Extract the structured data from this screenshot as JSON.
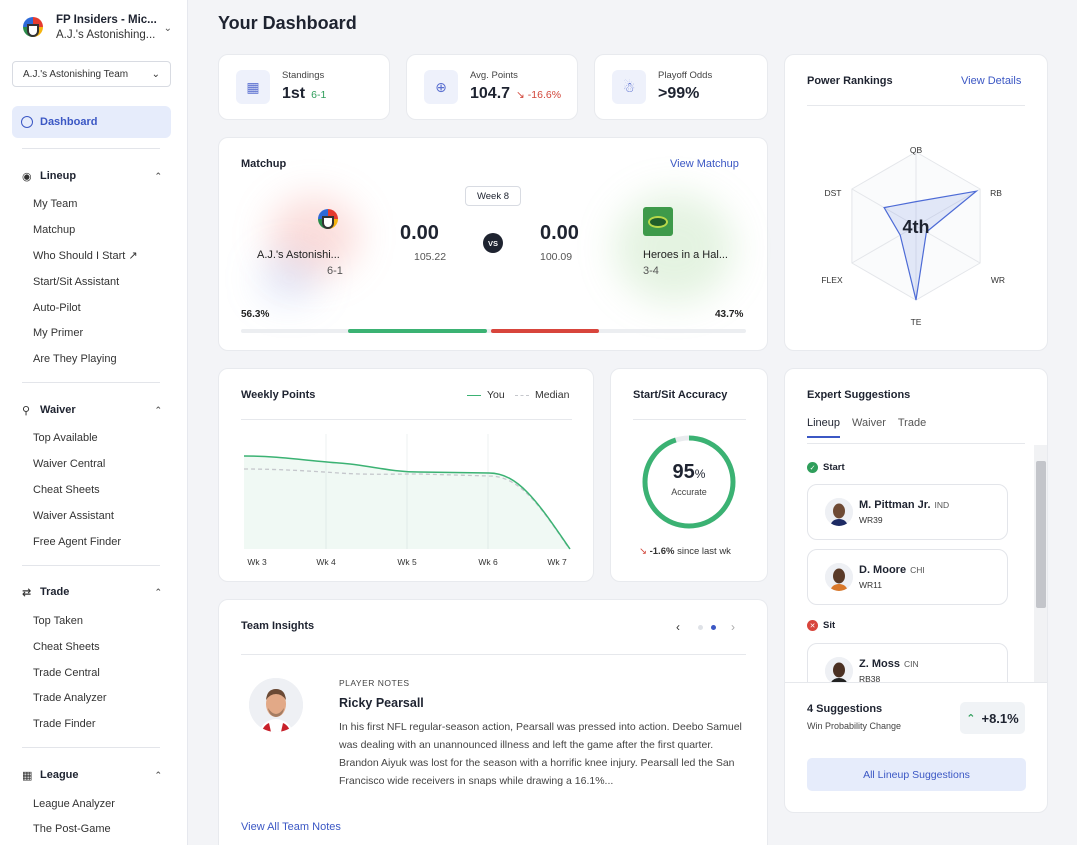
{
  "sidebar": {
    "league_title": "FP Insiders - Mic...",
    "league_team": "A.J.'s Astonishing...",
    "team_select": "A.J.'s Astonishing Team",
    "dashboard": "Dashboard",
    "sections": [
      {
        "label": "Lineup",
        "icon": "binoculars-icon",
        "items": [
          "My Team",
          "Matchup",
          "Who Should I Start",
          "Start/Sit Assistant",
          "Auto-Pilot",
          "My Primer",
          "Are They Playing"
        ]
      },
      {
        "label": "Waiver",
        "icon": "search-icon",
        "items": [
          "Top Available",
          "Waiver Central",
          "Cheat Sheets",
          "Waiver Assistant",
          "Free Agent Finder"
        ]
      },
      {
        "label": "Trade",
        "icon": "swap-icon",
        "items": [
          "Top Taken",
          "Cheat Sheets",
          "Trade Central",
          "Trade Analyzer",
          "Trade Finder"
        ]
      },
      {
        "label": "League",
        "icon": "bar-chart-icon",
        "items": [
          "League Analyzer",
          "The Post-Game"
        ]
      }
    ]
  },
  "page_title": "Your Dashboard",
  "stats": {
    "standings": {
      "label": "Standings",
      "value": "1st",
      "sub": "6-1"
    },
    "avg_points": {
      "label": "Avg. Points",
      "value": "104.7",
      "sub": "-16.6%"
    },
    "playoff_odds": {
      "label": "Playoff Odds",
      "value": ">99%"
    }
  },
  "matchup": {
    "title": "Matchup",
    "link": "View Matchup",
    "week": "Week 8",
    "vs": "VS",
    "home": {
      "name": "A.J.'s Astonishi...",
      "record": "6-1",
      "score": "0.00",
      "projected": "105.22",
      "win_pct": "56.3%",
      "win_fraction": 0.563
    },
    "away": {
      "name": "Heroes in a Hal...",
      "record": "3-4",
      "score": "0.00",
      "projected": "100.09",
      "win_pct": "43.7%",
      "win_fraction": 0.437
    }
  },
  "power_rankings": {
    "title": "Power Rankings",
    "link": "View Details",
    "rank": "4th",
    "axes": [
      "QB",
      "RB",
      "WR",
      "TE",
      "FLEX",
      "DST"
    ],
    "values": [
      0.2,
      0.93,
      0.0,
      1.0,
      0.1,
      0.4
    ]
  },
  "weekly_points": {
    "title": "Weekly Points",
    "legend_you": "You",
    "legend_median": "Median",
    "chart_data": {
      "type": "line",
      "x": [
        "Wk 3",
        "Wk 4",
        "Wk 5",
        "Wk 6",
        "Wk 7"
      ],
      "series": [
        {
          "name": "You",
          "values": [
            0.93,
            0.88,
            0.77,
            0.76,
            0.0
          ]
        },
        {
          "name": "Median",
          "values": [
            0.8,
            0.78,
            0.75,
            0.73,
            0.02
          ]
        }
      ]
    }
  },
  "accuracy": {
    "title": "Start/Sit Accuracy",
    "value": "95",
    "unit": "%",
    "label": "Accurate",
    "fraction": 0.95,
    "change": "-1.6%",
    "change_label": "since last wk"
  },
  "insights": {
    "title": "Team Insights",
    "notes_label": "PLAYER NOTES",
    "player": "Ricky Pearsall",
    "text": "In his first NFL regular-season action, Pearsall was pressed into action. Deebo Samuel was dealing with an unannounced illness and left the game after the first quarter. Brandon Aiyuk was lost for the season with a horrific knee injury. Pearsall led the San Francisco wide receivers in snaps while drawing a 16.1%...",
    "link": "View All Team Notes"
  },
  "expert": {
    "title": "Expert Suggestions",
    "tabs": [
      "Lineup",
      "Waiver",
      "Trade"
    ],
    "start_label": "Start",
    "sit_label": "Sit",
    "start": [
      {
        "name": "M. Pittman Jr.",
        "team": "IND",
        "pos": "WR39"
      },
      {
        "name": "D. Moore",
        "team": "CHI",
        "pos": "WR11"
      }
    ],
    "sit": [
      {
        "name": "Z. Moss",
        "team": "CIN",
        "pos": "RB38"
      }
    ],
    "count": "4 Suggestions",
    "count_sub": "Win Probability Change",
    "win_change": "+8.1%",
    "button": "All Lineup Suggestions"
  },
  "colors": {
    "accent": "#3b57c4",
    "green": "#3bb273",
    "red": "#d8453c"
  }
}
